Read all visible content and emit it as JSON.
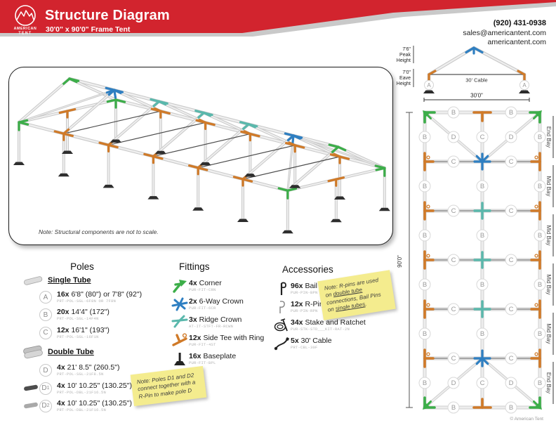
{
  "header": {
    "title": "Structure Diagram",
    "subtitle": "30'0\" x 90'0\" Frame Tent",
    "logo_line1": "AMERICAN",
    "logo_line2": "TENT",
    "phone": "(920) 431-0938",
    "email": "sales@americantent.com",
    "website": "americantent.com",
    "brand_red": "#d2242e"
  },
  "main_diagram": {
    "note": "Note: Structural components are not to scale."
  },
  "cross_section": {
    "peak_value": "7'6\"",
    "peak_line1": "Peak",
    "peak_line2": "Height",
    "eave_value": "7'0\"",
    "eave_line1": "Eave",
    "eave_line2": "Height",
    "cable_label": "30' Cable",
    "width_label": "30'0\"",
    "leg_label": "A"
  },
  "floor_plan": {
    "length_label": "90'0\"",
    "bays": [
      "End Bay",
      "Mid Bay",
      "Mid Bay",
      "Mid Bay",
      "Mid Bay",
      "End Bay"
    ],
    "pole_labels": {
      "edge": "B",
      "cross": "C",
      "diagonal": "D"
    },
    "colors": {
      "green": "#3cae49",
      "blue": "#2e7fc2",
      "teal": "#5ab8ac",
      "orange": "#d07a28",
      "tube": "#cfcfcf",
      "cable": "#5f5f5f"
    }
  },
  "legend": {
    "poles": {
      "title": "Poles",
      "single_tube_heading": "Single Tube",
      "double_tube_heading": "Double Tube",
      "items": [
        {
          "id": "A",
          "count": "16x",
          "size": "6'8\" (80\") or 7'8\" (92\")",
          "part": "PRT-POL-SGL-6F8N OR 7F8N",
          "group": "single",
          "icon": ""
        },
        {
          "id": "B",
          "count": "20x",
          "size": "14'4\" (172\")",
          "part": "PRT-POL-SGL-14F4N",
          "group": "single",
          "icon": ""
        },
        {
          "id": "C",
          "count": "12x",
          "size": "16'1\" (193\")",
          "part": "PRT-POL-SGL-16F1N",
          "group": "single",
          "icon": ""
        },
        {
          "id": "D",
          "count": "4x",
          "size": "21' 8.5\" (260.5\")",
          "part": "PRT-POL-SGL-21F8.5N",
          "group": "double",
          "icon": ""
        },
        {
          "id": "D1",
          "count": "4x",
          "size": "10' 10.25\" (130.25\")",
          "part": "PRT-POL-DBL-21F16.5N",
          "group": "double",
          "icon": "dark-tube"
        },
        {
          "id": "D2",
          "count": "4x",
          "size": "10' 10.25\" (130.25\")",
          "part": "PRT-POL-DBL-21F16.5N",
          "group": "double",
          "icon": "light-tube"
        }
      ],
      "note_segments": [
        {
          "text": "Note: Poles D1 and D2 connect together with a R-Pin to make pole D"
        }
      ]
    },
    "fittings": {
      "title": "Fittings",
      "items": [
        {
          "count": "4x",
          "name": "Corner",
          "part": "PUR-FIT-CRN",
          "icon": "corner"
        },
        {
          "count": "2x",
          "name": "6-Way Crown",
          "part": "PUR-FIT-6CR",
          "icon": "crown"
        },
        {
          "count": "3x",
          "name": "Ridge Crown",
          "part": "AT-IT-STFT-FR-RCWN",
          "icon": "ridge"
        },
        {
          "count": "12x",
          "name": "Side Tee with Ring",
          "part": "PUR-FIT-4ST",
          "icon": "tee"
        },
        {
          "count": "16x",
          "name": "Baseplate",
          "part": "PUR-FIT-BPL",
          "icon": "baseplate"
        }
      ]
    },
    "accessories": {
      "title": "Accessories",
      "items": [
        {
          "count": "96x",
          "name": "Bail Pin",
          "part": "PUR-PIN-BPN",
          "icon": "bail-pin"
        },
        {
          "count": "12x",
          "name": "R-Pin",
          "part": "PUR-PIN-RPN",
          "icon": "r-pin"
        },
        {
          "count": "34x",
          "name": "Stake and Ratchet",
          "part": "PUR-STK-STD___KIT-RAT-2N",
          "icon": "stake"
        },
        {
          "count": "5x",
          "name": "30' Cable",
          "part": "PRT-CBL-30F",
          "icon": "cable"
        }
      ],
      "note_segments": [
        {
          "text": "Note: R-pins are used on "
        },
        {
          "text": "double tube",
          "u": true
        },
        {
          "text": " connections, Bail Pins on "
        },
        {
          "text": "single tubes",
          "u": true
        },
        {
          "text": "."
        }
      ]
    }
  },
  "footer": {
    "copyright": "© American Tent"
  }
}
